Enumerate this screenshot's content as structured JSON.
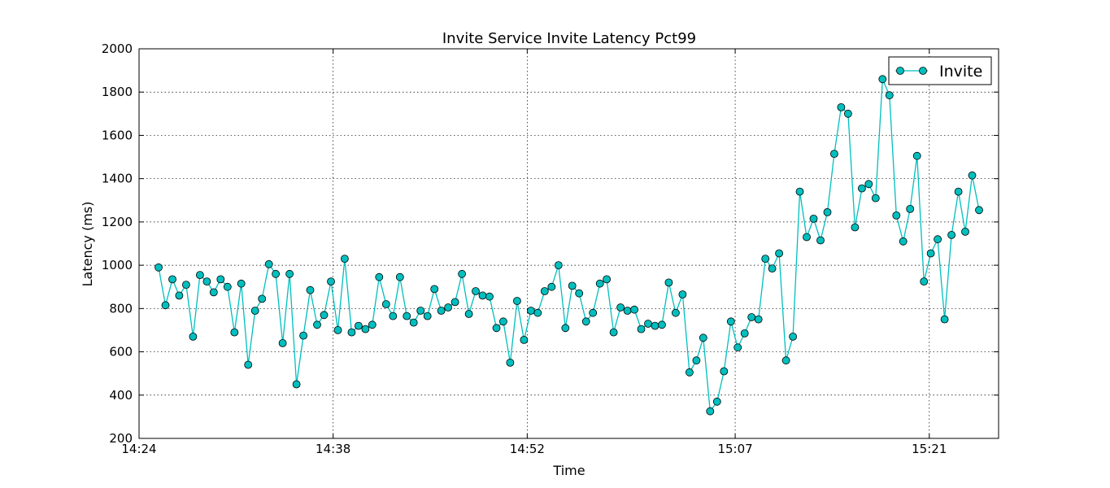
{
  "chart_data": {
    "type": "line",
    "title": "Invite Service Invite Latency Pct99",
    "xlabel": "Time",
    "ylabel": "Latency (ms)",
    "ylim": [
      200,
      2000
    ],
    "yticks": [
      200,
      400,
      600,
      800,
      1000,
      1200,
      1400,
      1600,
      1800,
      2000
    ],
    "xlim": [
      "14:24",
      "15:26"
    ],
    "xticks": [
      "14:24",
      "14:38",
      "14:52",
      "15:07",
      "15:21"
    ],
    "grid": true,
    "legend_position": "top-right",
    "colors": {
      "series": "#00bfbf",
      "marker_edge": "#000000"
    },
    "series": [
      {
        "name": "Invite",
        "values": [
          990,
          815,
          935,
          860,
          910,
          670,
          955,
          925,
          875,
          935,
          900,
          690,
          915,
          540,
          790,
          845,
          1005,
          960,
          640,
          960,
          450,
          675,
          885,
          725,
          770,
          925,
          700,
          1030,
          690,
          720,
          705,
          725,
          945,
          820,
          765,
          945,
          765,
          735,
          790,
          765,
          890,
          790,
          805,
          830,
          960,
          775,
          880,
          860,
          855,
          710,
          740,
          550,
          835,
          655,
          790,
          780,
          880,
          900,
          1000,
          710,
          905,
          870,
          740,
          780,
          915,
          935,
          690,
          805,
          790,
          795,
          705,
          730,
          720,
          725,
          920,
          780,
          865,
          505,
          560,
          665,
          325,
          370,
          510,
          740,
          620,
          685,
          760,
          750,
          1030,
          985,
          1055,
          560,
          670,
          1340,
          1130,
          1215,
          1115,
          1245,
          1515,
          1730,
          1700,
          1175,
          1355,
          1375,
          1310,
          1860,
          1785,
          1230,
          1110,
          1260,
          1505,
          925,
          1055,
          1120,
          750,
          1140,
          1340,
          1155,
          1415,
          1255
        ]
      }
    ]
  }
}
